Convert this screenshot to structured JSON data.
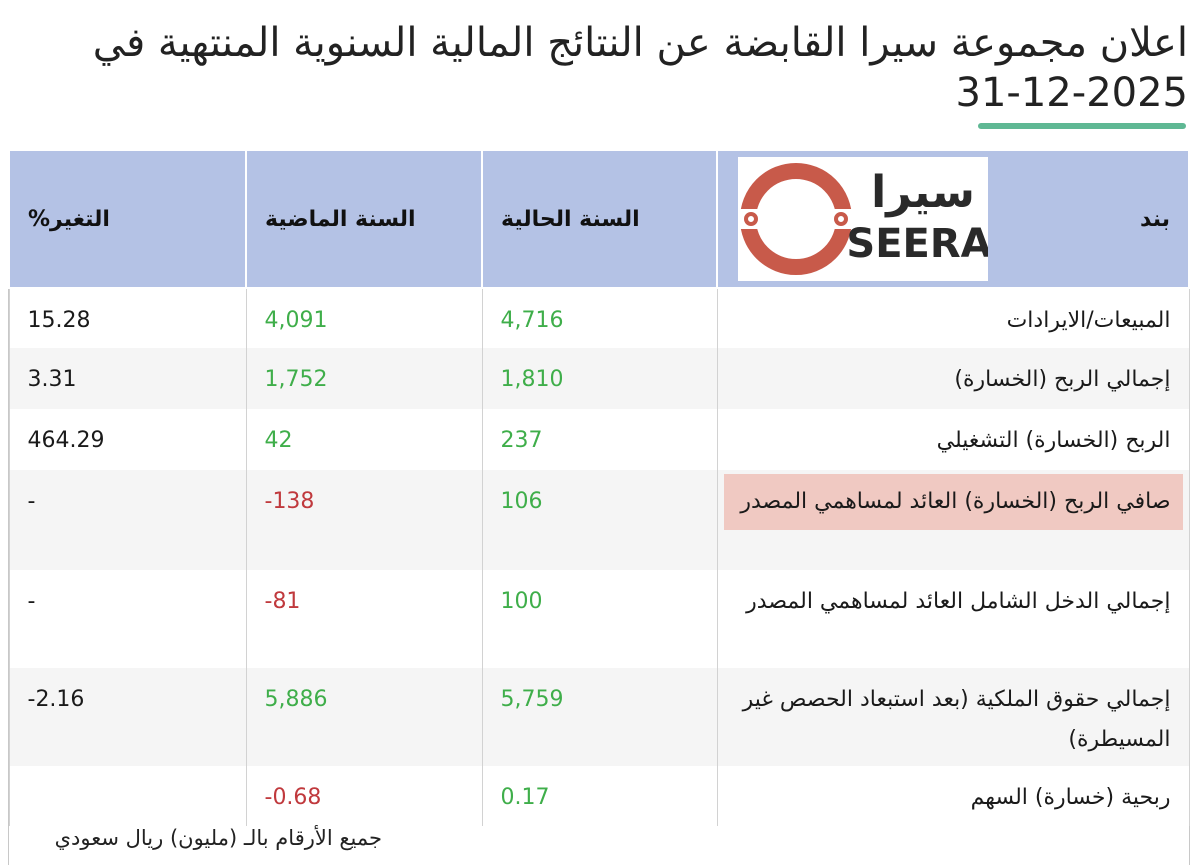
{
  "title": "اعلان مجموعة سيرا القابضة عن النتائج المالية السنوية المنتهية في 2025-12-31",
  "accent_color": "#5fb894",
  "header_color": "#b4c2e5",
  "logo": {
    "arabic": "سيرا",
    "latin": "SEERA",
    "color": "#c85a4a"
  },
  "table": {
    "headers": {
      "item": "بند",
      "current": "السنة الحالية",
      "previous": "السنة الماضية",
      "change": "التغير%"
    },
    "rows": [
      {
        "item": "المبيعات/الايرادات",
        "current": "4,716",
        "previous": "4,091",
        "change": "15.28"
      },
      {
        "item": "إجمالي الربح (الخسارة)",
        "current": "1,810",
        "previous": "1,752",
        "change": "3.31"
      },
      {
        "item": "الربح (الخسارة) التشغيلي",
        "current": "237",
        "previous": "42",
        "change": "464.29"
      },
      {
        "item": "صافي الربح (الخسارة) العائد لمساهمي المصدر",
        "current": "106",
        "previous": "-138",
        "change": "-"
      },
      {
        "item": "إجمالي الدخل الشامل العائد لمساهمي المصدر",
        "current": "100",
        "previous": "-81",
        "change": "-"
      },
      {
        "item": "إجمالي حقوق الملكية (بعد استبعاد الحصص غير المسيطرة)",
        "current": "5,759",
        "previous": "5,886",
        "change": "-2.16"
      },
      {
        "item": "ربحية (خسارة) السهم",
        "current": "0.17",
        "previous": "-0.68",
        "change": ""
      }
    ]
  },
  "footer": "جميع الأرقام بالـ (مليون) ريال سعودي"
}
